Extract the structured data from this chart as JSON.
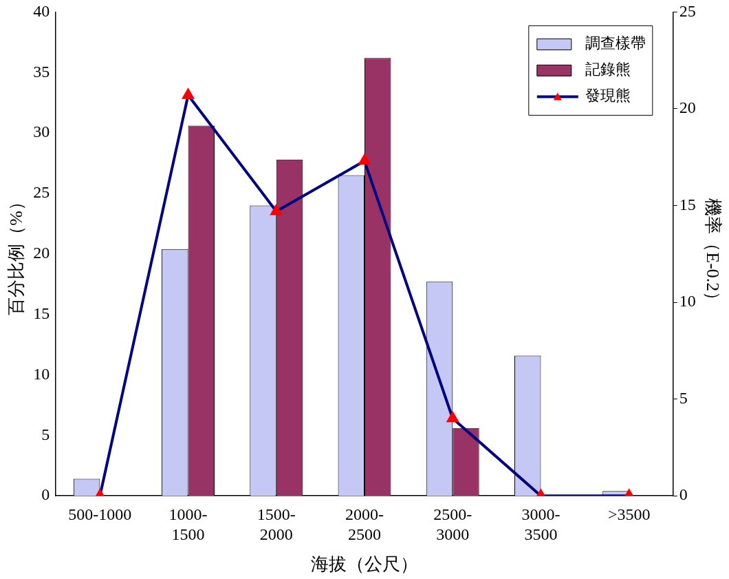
{
  "chart_data": {
    "type": "bar",
    "xlabel": "海拔（公尺）",
    "ylabel": "百分比例（%）",
    "y2label": "機率（E-0.2）",
    "categories": [
      "500-1000",
      "1000-1500",
      "1500-2000",
      "2000-2500",
      "2500-3000",
      "3000-3500",
      ">3500"
    ],
    "series": [
      {
        "name": "調查樣帶",
        "color": "#c5c8f5",
        "values": [
          1.4,
          20.4,
          24.0,
          26.5,
          17.7,
          11.6,
          0.4
        ]
      },
      {
        "name": "記錄熊",
        "color": "#993366",
        "values": [
          0,
          30.6,
          27.8,
          36.2,
          5.6,
          0,
          0
        ]
      },
      {
        "name": "發現熊",
        "type": "line",
        "axis": "y2",
        "color": "#000080",
        "values": [
          0,
          20.7,
          14.7,
          17.3,
          4.0,
          0,
          0
        ]
      }
    ],
    "ylim": [
      0,
      40
    ],
    "yticks": [
      0,
      5,
      10,
      15,
      20,
      25,
      30,
      35,
      40
    ],
    "y2lim": [
      0,
      25
    ],
    "y2ticks": [
      0,
      5,
      10,
      15,
      20,
      25
    ],
    "grid": false,
    "legend": "top right",
    "marker": "triangle",
    "line_style": "solid"
  }
}
